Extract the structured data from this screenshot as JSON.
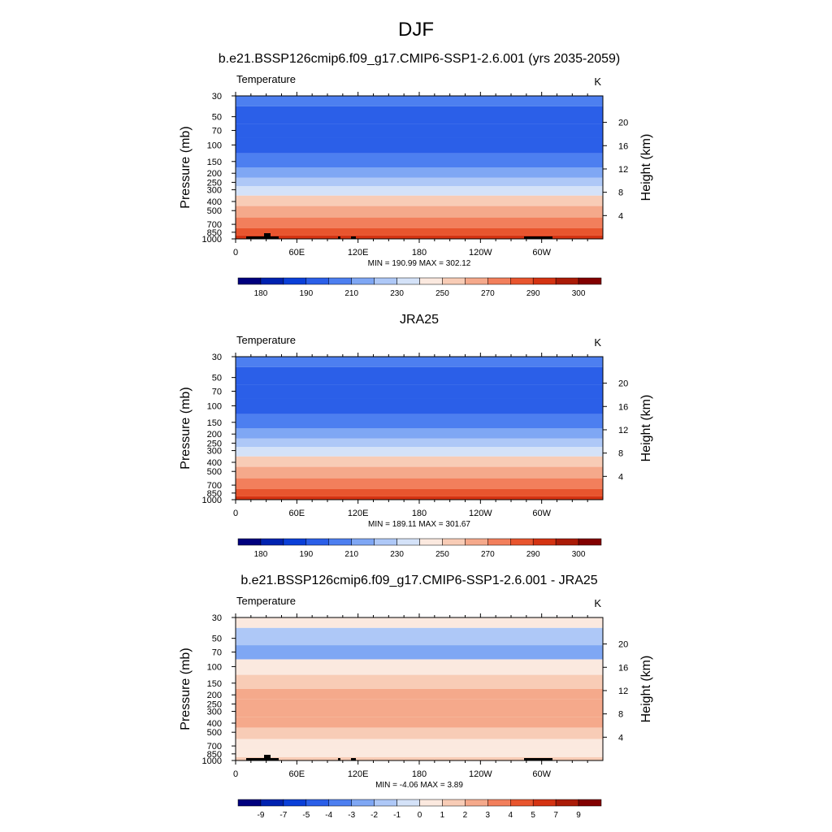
{
  "figure": {
    "title": "DJF"
  },
  "chart_data": [
    {
      "type": "heatmap",
      "title": "b.e21.BSSP126cmip6.f09_g17.CMIP6-SSP1-2.6.001 (yrs 2035-2059)",
      "left_label": "Temperature",
      "units": "K",
      "ylabel": "Pressure (mb)",
      "y2label": "Height (km)",
      "x_ticks": [
        "0",
        "60E",
        "120E",
        "180",
        "120W",
        "60W"
      ],
      "y_ticks": [
        "30",
        "50",
        "70",
        "100",
        "150",
        "200",
        "250",
        "300",
        "400",
        "500",
        "700",
        "850",
        "1000"
      ],
      "y2_ticks": [
        "4",
        "8",
        "12",
        "16",
        "20"
      ],
      "stats": "MIN = 190.99  MAX = 302.12",
      "colorbar": {
        "colors": [
          "#00007e",
          "#0022b0",
          "#0a3fd8",
          "#2b5fe8",
          "#4d7ff0",
          "#7fa7f4",
          "#aec8f7",
          "#d4e2f8",
          "#fbe9df",
          "#f8ccb6",
          "#f5a98b",
          "#f27f5c",
          "#e8552e",
          "#d43312",
          "#aa1b07",
          "#820000"
        ],
        "labels": [
          "180",
          "190",
          "210",
          "230",
          "250",
          "270",
          "290",
          "300"
        ]
      },
      "profile": [
        {
          "p": 30,
          "t": 210
        },
        {
          "p": 50,
          "t": 205
        },
        {
          "p": 70,
          "t": 203
        },
        {
          "p": 100,
          "t": 203
        },
        {
          "p": 150,
          "t": 212
        },
        {
          "p": 200,
          "t": 222
        },
        {
          "p": 250,
          "t": 230
        },
        {
          "p": 300,
          "t": 237
        },
        {
          "p": 400,
          "t": 250
        },
        {
          "p": 500,
          "t": 260
        },
        {
          "p": 700,
          "t": 272
        },
        {
          "p": 850,
          "t": 282
        },
        {
          "p": 1000,
          "t": 290
        }
      ],
      "topography_mask": true
    },
    {
      "type": "heatmap",
      "title": "JRA25",
      "left_label": "Temperature",
      "units": "K",
      "ylabel": "Pressure (mb)",
      "y2label": "Height (km)",
      "x_ticks": [
        "0",
        "60E",
        "120E",
        "180",
        "120W",
        "60W"
      ],
      "y_ticks": [
        "30",
        "50",
        "70",
        "100",
        "150",
        "200",
        "250",
        "300",
        "400",
        "500",
        "700",
        "850",
        "1000"
      ],
      "y2_ticks": [
        "4",
        "8",
        "12",
        "16",
        "20"
      ],
      "stats": "MIN = 189.11  MAX = 301.67",
      "colorbar": {
        "colors": [
          "#00007e",
          "#0022b0",
          "#0a3fd8",
          "#2b5fe8",
          "#4d7ff0",
          "#7fa7f4",
          "#aec8f7",
          "#d4e2f8",
          "#fbe9df",
          "#f8ccb6",
          "#f5a98b",
          "#f27f5c",
          "#e8552e",
          "#d43312",
          "#aa1b07",
          "#820000"
        ],
        "labels": [
          "180",
          "190",
          "210",
          "230",
          "250",
          "270",
          "290",
          "300"
        ]
      },
      "profile": [
        {
          "p": 30,
          "t": 210
        },
        {
          "p": 50,
          "t": 205
        },
        {
          "p": 70,
          "t": 203
        },
        {
          "p": 100,
          "t": 202
        },
        {
          "p": 150,
          "t": 211
        },
        {
          "p": 200,
          "t": 221
        },
        {
          "p": 250,
          "t": 229
        },
        {
          "p": 300,
          "t": 236
        },
        {
          "p": 400,
          "t": 249
        },
        {
          "p": 500,
          "t": 259
        },
        {
          "p": 700,
          "t": 271
        },
        {
          "p": 850,
          "t": 281
        },
        {
          "p": 1000,
          "t": 289
        }
      ],
      "topography_mask": false
    },
    {
      "type": "heatmap",
      "title": "b.e21.BSSP126cmip6.f09_g17.CMIP6-SSP1-2.6.001 - JRA25",
      "left_label": "Temperature",
      "units": "K",
      "ylabel": "Pressure (mb)",
      "y2label": "Height (km)",
      "x_ticks": [
        "0",
        "60E",
        "120E",
        "180",
        "120W",
        "60W"
      ],
      "y_ticks": [
        "30",
        "50",
        "70",
        "100",
        "150",
        "200",
        "250",
        "300",
        "400",
        "500",
        "700",
        "850",
        "1000"
      ],
      "y2_ticks": [
        "4",
        "8",
        "12",
        "16",
        "20"
      ],
      "stats": "MIN =  -4.06  MAX =   3.89",
      "colorbar": {
        "colors": [
          "#00007e",
          "#0022b0",
          "#0a3fd8",
          "#2b5fe8",
          "#4d7ff0",
          "#7fa7f4",
          "#aec8f7",
          "#d4e2f8",
          "#fbe9df",
          "#f8ccb6",
          "#f5a98b",
          "#f27f5c",
          "#e8552e",
          "#d43312",
          "#aa1b07",
          "#820000"
        ],
        "labels": [
          "-9",
          "-7",
          "-5",
          "-4",
          "-3",
          "-2",
          "-1",
          "0",
          "1",
          "2",
          "3",
          "4",
          "5",
          "7",
          "9"
        ]
      },
      "profile": [
        {
          "p": 30,
          "t": 0.3
        },
        {
          "p": 50,
          "t": -1.5
        },
        {
          "p": 70,
          "t": -2.5
        },
        {
          "p": 100,
          "t": 0.5
        },
        {
          "p": 150,
          "t": 1.6
        },
        {
          "p": 200,
          "t": 2.1
        },
        {
          "p": 250,
          "t": 2.3
        },
        {
          "p": 300,
          "t": 2.4
        },
        {
          "p": 400,
          "t": 2.2
        },
        {
          "p": 500,
          "t": 1.9
        },
        {
          "p": 700,
          "t": 1.0
        },
        {
          "p": 850,
          "t": 0.6
        },
        {
          "p": 1000,
          "t": 1.2
        }
      ],
      "topography_mask": true
    }
  ]
}
